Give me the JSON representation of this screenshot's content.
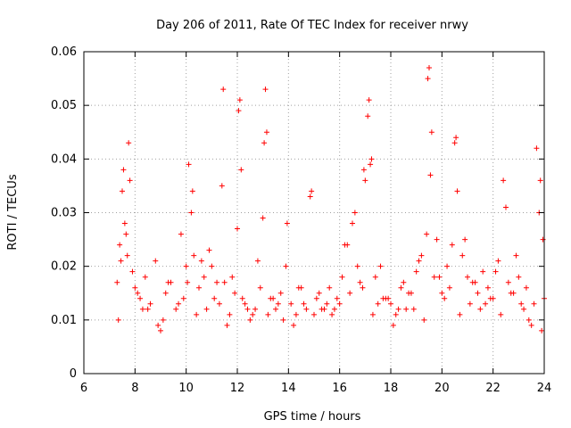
{
  "chart_data": {
    "type": "scatter",
    "title": "Day 206 of 2011, Rate Of TEC Index for receiver nrwy",
    "xlabel": "GPS time / hours",
    "ylabel": "ROTI / TECUs",
    "xlim": [
      6,
      24
    ],
    "ylim": [
      0,
      0.06
    ],
    "x_ticks": [
      "6",
      "8",
      "10",
      "12",
      "14",
      "16",
      "18",
      "20",
      "22",
      "24"
    ],
    "y_ticks": [
      "0",
      "0.01",
      "0.02",
      "0.03",
      "0.04",
      "0.05",
      "0.06"
    ],
    "grid": true,
    "marker": "plus",
    "color": "#ff0000",
    "series": [
      {
        "name": "ROTI",
        "x": [
          7.3,
          7.4,
          7.5,
          7.6,
          7.7,
          7.8,
          7.9,
          8.0,
          8.2,
          8.4,
          8.6,
          8.8,
          9.0,
          9.2,
          9.4,
          9.6,
          9.8,
          10.0,
          10.1,
          10.2,
          10.3,
          10.5,
          10.7,
          10.9,
          11.1,
          11.3,
          11.5,
          11.7,
          11.9,
          12.0,
          12.1,
          12.3,
          12.5,
          12.7,
          12.9,
          13.0,
          13.1,
          13.3,
          13.5,
          13.7,
          13.9,
          14.1,
          14.3,
          14.5,
          14.7,
          14.9,
          15.1,
          15.3,
          15.5,
          15.7,
          15.9,
          16.1,
          16.3,
          16.5,
          16.7,
          16.9,
          17.0,
          17.1,
          17.2,
          17.4,
          17.6,
          17.8,
          18.0,
          18.2,
          18.4,
          18.6,
          18.8,
          19.0,
          19.2,
          19.4,
          19.5,
          19.6,
          19.8,
          20.0,
          20.2,
          20.4,
          20.5,
          20.6,
          20.8,
          21.0,
          21.2,
          21.4,
          21.6,
          21.8,
          22.0,
          22.2,
          22.4,
          22.6,
          22.8,
          23.0,
          23.2,
          23.4,
          23.6,
          23.8,
          24.0,
          7.35,
          7.55,
          7.75,
          8.1,
          8.5,
          9.1,
          9.7,
          10.05,
          10.25,
          10.6,
          11.0,
          11.4,
          11.45,
          11.8,
          12.05,
          12.15,
          12.6,
          13.05,
          13.15,
          13.6,
          13.95,
          14.4,
          14.85,
          15.2,
          15.8,
          16.2,
          16.6,
          16.95,
          17.15,
          17.25,
          17.7,
          18.3,
          18.7,
          19.1,
          19.45,
          19.55,
          19.9,
          20.3,
          20.55,
          20.9,
          21.3,
          21.7,
          22.1,
          22.5,
          22.9,
          23.3,
          23.7,
          23.85,
          23.95,
          7.45,
          7.65,
          8.3,
          8.9,
          9.3,
          9.9,
          10.4,
          10.8,
          11.2,
          11.6,
          12.2,
          12.4,
          12.8,
          13.2,
          13.4,
          13.8,
          14.2,
          14.6,
          15.0,
          15.4,
          15.6,
          16.0,
          16.4,
          16.8,
          17.3,
          17.5,
          17.9,
          18.1,
          18.5,
          18.9,
          19.3,
          19.7,
          20.1,
          20.7,
          21.1,
          21.5,
          21.9,
          22.3,
          22.7,
          23.1,
          23.5,
          23.9
        ],
        "y": [
          0.017,
          0.024,
          0.034,
          0.028,
          0.022,
          0.036,
          0.019,
          0.016,
          0.014,
          0.018,
          0.013,
          0.021,
          0.008,
          0.015,
          0.017,
          0.012,
          0.026,
          0.02,
          0.039,
          0.03,
          0.022,
          0.016,
          0.018,
          0.023,
          0.014,
          0.013,
          0.017,
          0.011,
          0.015,
          0.027,
          0.051,
          0.013,
          0.01,
          0.012,
          0.016,
          0.029,
          0.053,
          0.014,
          0.012,
          0.015,
          0.02,
          0.013,
          0.011,
          0.016,
          0.012,
          0.034,
          0.014,
          0.012,
          0.013,
          0.011,
          0.014,
          0.018,
          0.024,
          0.028,
          0.02,
          0.016,
          0.036,
          0.048,
          0.039,
          0.018,
          0.02,
          0.014,
          0.013,
          0.011,
          0.016,
          0.012,
          0.015,
          0.019,
          0.022,
          0.026,
          0.057,
          0.045,
          0.025,
          0.015,
          0.02,
          0.024,
          0.043,
          0.034,
          0.022,
          0.018,
          0.017,
          0.015,
          0.019,
          0.016,
          0.014,
          0.021,
          0.036,
          0.017,
          0.015,
          0.018,
          0.012,
          0.01,
          0.013,
          0.03,
          0.014,
          0.01,
          0.038,
          0.043,
          0.015,
          0.012,
          0.01,
          0.013,
          0.017,
          0.034,
          0.021,
          0.02,
          0.035,
          0.053,
          0.018,
          0.049,
          0.038,
          0.011,
          0.043,
          0.045,
          0.013,
          0.028,
          0.016,
          0.033,
          0.015,
          0.012,
          0.024,
          0.03,
          0.038,
          0.051,
          0.04,
          0.014,
          0.012,
          0.015,
          0.021,
          0.055,
          0.037,
          0.018,
          0.016,
          0.044,
          0.025,
          0.017,
          0.013,
          0.019,
          0.031,
          0.022,
          0.016,
          0.042,
          0.036,
          0.025,
          0.021,
          0.026,
          0.012,
          0.009,
          0.017,
          0.014,
          0.011,
          0.012,
          0.017,
          0.009,
          0.014,
          0.012,
          0.021,
          0.011,
          0.014,
          0.01,
          0.009,
          0.013,
          0.011,
          0.012,
          0.016,
          0.013,
          0.015,
          0.017,
          0.011,
          0.013,
          0.014,
          0.009,
          0.017,
          0.012,
          0.01,
          0.018,
          0.014,
          0.011,
          0.013,
          0.012,
          0.014,
          0.011,
          0.015,
          0.013,
          0.009,
          0.008
        ]
      }
    ]
  }
}
